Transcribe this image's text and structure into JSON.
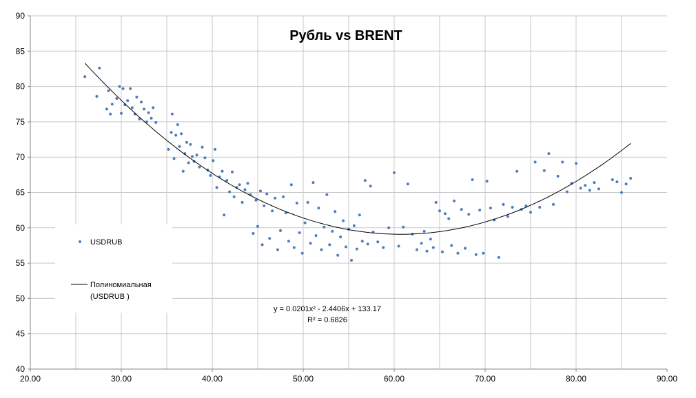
{
  "chart_data": {
    "type": "scatter",
    "title": "Рубль  vs BRENT",
    "xlabel": "",
    "ylabel": "",
    "xlim": [
      20,
      90
    ],
    "ylim": [
      40,
      90
    ],
    "xticks": [
      "20.00",
      "30.00",
      "40.00",
      "50.00",
      "60.00",
      "70.00",
      "80.00",
      "90.00"
    ],
    "yticks": [
      "40",
      "45",
      "50",
      "55",
      "60",
      "65",
      "70",
      "75",
      "80",
      "85",
      "90"
    ],
    "grid": true,
    "legend_position": "left",
    "series": [
      {
        "name": "USDRUB",
        "kind": "points",
        "color": "#4a7ebb",
        "points": [
          [
            26.0,
            81.4
          ],
          [
            27.3,
            78.6
          ],
          [
            27.6,
            82.6
          ],
          [
            28.4,
            76.8
          ],
          [
            28.6,
            79.4
          ],
          [
            28.8,
            76.1
          ],
          [
            29.0,
            77.5
          ],
          [
            29.5,
            78.3
          ],
          [
            29.8,
            80.0
          ],
          [
            30.0,
            76.2
          ],
          [
            30.2,
            79.7
          ],
          [
            30.4,
            77.4
          ],
          [
            30.7,
            78.0
          ],
          [
            31.0,
            79.7
          ],
          [
            31.2,
            77.0
          ],
          [
            31.5,
            76.1
          ],
          [
            31.7,
            78.5
          ],
          [
            32.0,
            75.4
          ],
          [
            32.2,
            77.8
          ],
          [
            32.5,
            76.8
          ],
          [
            32.8,
            75.0
          ],
          [
            33.0,
            76.3
          ],
          [
            33.3,
            75.5
          ],
          [
            33.5,
            77.0
          ],
          [
            33.8,
            74.9
          ],
          [
            35.2,
            71.1
          ],
          [
            35.5,
            73.5
          ],
          [
            35.6,
            76.1
          ],
          [
            35.8,
            69.8
          ],
          [
            36.0,
            73.1
          ],
          [
            36.2,
            74.6
          ],
          [
            36.4,
            71.5
          ],
          [
            36.6,
            73.3
          ],
          [
            36.8,
            68.0
          ],
          [
            37.0,
            70.5
          ],
          [
            37.2,
            72.1
          ],
          [
            37.4,
            69.2
          ],
          [
            37.6,
            71.8
          ],
          [
            37.8,
            70.1
          ],
          [
            38.0,
            69.4
          ],
          [
            38.3,
            70.3
          ],
          [
            38.6,
            68.6
          ],
          [
            38.9,
            71.4
          ],
          [
            39.2,
            69.9
          ],
          [
            39.5,
            68.2
          ],
          [
            39.8,
            67.4
          ],
          [
            40.1,
            69.5
          ],
          [
            40.3,
            71.1
          ],
          [
            40.5,
            65.7
          ],
          [
            40.8,
            67.2
          ],
          [
            41.1,
            68.0
          ],
          [
            41.3,
            61.8
          ],
          [
            41.6,
            66.7
          ],
          [
            41.9,
            65.1
          ],
          [
            42.2,
            67.9
          ],
          [
            42.4,
            64.4
          ],
          [
            42.7,
            65.7
          ],
          [
            43.0,
            66.1
          ],
          [
            43.3,
            63.6
          ],
          [
            43.6,
            65.4
          ],
          [
            43.9,
            66.3
          ],
          [
            44.2,
            64.7
          ],
          [
            44.5,
            59.2
          ],
          [
            44.8,
            63.9
          ],
          [
            45.0,
            60.2
          ],
          [
            45.3,
            65.2
          ],
          [
            45.5,
            57.6
          ],
          [
            45.7,
            63.1
          ],
          [
            46.0,
            64.8
          ],
          [
            46.3,
            58.5
          ],
          [
            46.6,
            62.4
          ],
          [
            46.9,
            64.2
          ],
          [
            47.2,
            56.9
          ],
          [
            47.5,
            59.6
          ],
          [
            47.8,
            64.4
          ],
          [
            48.1,
            62.1
          ],
          [
            48.4,
            58.1
          ],
          [
            48.7,
            66.1
          ],
          [
            49.0,
            57.2
          ],
          [
            49.3,
            63.5
          ],
          [
            49.6,
            59.3
          ],
          [
            49.9,
            56.4
          ],
          [
            50.2,
            60.7
          ],
          [
            50.5,
            63.6
          ],
          [
            50.8,
            57.8
          ],
          [
            51.1,
            66.4
          ],
          [
            51.4,
            58.9
          ],
          [
            51.7,
            62.8
          ],
          [
            52.0,
            56.9
          ],
          [
            52.3,
            60.1
          ],
          [
            52.6,
            64.7
          ],
          [
            52.9,
            57.6
          ],
          [
            53.2,
            59.5
          ],
          [
            53.5,
            62.3
          ],
          [
            53.8,
            56.1
          ],
          [
            54.1,
            58.7
          ],
          [
            54.4,
            61.0
          ],
          [
            54.7,
            57.3
          ],
          [
            55.0,
            59.8
          ],
          [
            55.3,
            55.4
          ],
          [
            55.6,
            60.3
          ],
          [
            55.9,
            57.0
          ],
          [
            56.2,
            61.8
          ],
          [
            56.5,
            58.1
          ],
          [
            56.8,
            66.7
          ],
          [
            57.1,
            57.7
          ],
          [
            57.4,
            65.9
          ],
          [
            57.7,
            59.4
          ],
          [
            58.2,
            58.0
          ],
          [
            58.8,
            57.2
          ],
          [
            59.4,
            60.0
          ],
          [
            60.0,
            67.8
          ],
          [
            60.5,
            57.4
          ],
          [
            61.0,
            60.1
          ],
          [
            61.5,
            66.2
          ],
          [
            62.0,
            59.1
          ],
          [
            62.5,
            56.9
          ],
          [
            63.0,
            57.8
          ],
          [
            63.3,
            59.5
          ],
          [
            63.6,
            56.7
          ],
          [
            64.0,
            58.4
          ],
          [
            64.3,
            57.2
          ],
          [
            64.6,
            63.6
          ],
          [
            65.0,
            62.4
          ],
          [
            65.3,
            56.6
          ],
          [
            65.6,
            62.0
          ],
          [
            66.0,
            61.3
          ],
          [
            66.3,
            57.5
          ],
          [
            66.6,
            63.8
          ],
          [
            67.0,
            56.4
          ],
          [
            67.4,
            62.6
          ],
          [
            67.8,
            57.1
          ],
          [
            68.2,
            61.9
          ],
          [
            68.6,
            66.8
          ],
          [
            69.0,
            56.2
          ],
          [
            69.4,
            62.5
          ],
          [
            69.8,
            56.4
          ],
          [
            70.2,
            66.6
          ],
          [
            70.6,
            62.8
          ],
          [
            71.0,
            61.1
          ],
          [
            71.5,
            55.8
          ],
          [
            72.0,
            63.3
          ],
          [
            72.5,
            61.6
          ],
          [
            73.0,
            62.9
          ],
          [
            73.5,
            68.0
          ],
          [
            74.0,
            62.6
          ],
          [
            74.5,
            63.1
          ],
          [
            75.0,
            62.2
          ],
          [
            75.5,
            69.3
          ],
          [
            76.0,
            62.9
          ],
          [
            76.5,
            68.1
          ],
          [
            77.0,
            70.5
          ],
          [
            77.5,
            63.3
          ],
          [
            78.0,
            67.3
          ],
          [
            78.5,
            69.3
          ],
          [
            79.0,
            65.1
          ],
          [
            79.5,
            66.3
          ],
          [
            80.0,
            69.1
          ],
          [
            80.5,
            65.6
          ],
          [
            81.0,
            66.0
          ],
          [
            81.5,
            65.3
          ],
          [
            82.0,
            66.4
          ],
          [
            82.5,
            65.5
          ],
          [
            84.0,
            66.8
          ],
          [
            84.5,
            66.5
          ],
          [
            85.0,
            65.0
          ],
          [
            85.5,
            66.2
          ],
          [
            86.0,
            67.0
          ]
        ]
      },
      {
        "name": "Полиномиальная (USDRUB )",
        "kind": "trendline",
        "color": "#000000",
        "coefficients": [
          0.0201,
          -2.4406,
          133.17
        ],
        "x_range": [
          26,
          86
        ]
      }
    ],
    "legend": {
      "entries": [
        "USDRUB",
        "Полиномиальная",
        "(USDRUB  )"
      ]
    },
    "annotation": {
      "equation": "y = 0.0201x² - 2.4406x + 133.17",
      "r2": "R² = 0.6826"
    }
  }
}
